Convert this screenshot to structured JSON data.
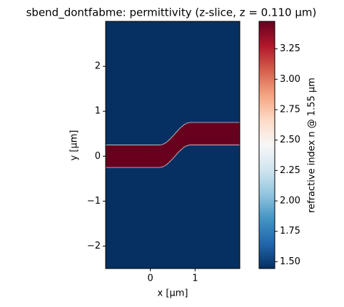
{
  "chart_data": {
    "type": "heatmap",
    "title": "sbend_dontfabme: permittivity (z-slice, z = 0.110 µm)",
    "xlabel": "x [µm]",
    "ylabel": "y [µm]",
    "xlim": [
      -1,
      2
    ],
    "ylim": [
      -2.5,
      3
    ],
    "xticks": [
      0,
      1
    ],
    "yticks": [
      {
        "value": -2,
        "label": "−2"
      },
      {
        "value": -1,
        "label": "−1"
      },
      0,
      1,
      2
    ],
    "cladding_index": 1.444,
    "waveguide": {
      "index": 3.476,
      "width": 0.5,
      "bend_start": 0.2,
      "bend_end": 0.9,
      "y_start": 0,
      "y_end": 0.5
    },
    "colorbar": {
      "label": "refractive index n @ 1.55 µm",
      "colormap": "RdBu_r",
      "clim": [
        1.444,
        3.476
      ],
      "ticks": [
        {
          "value": 1.5,
          "label": "1.50"
        },
        {
          "value": 1.75,
          "label": "1.75"
        },
        {
          "value": 2.0,
          "label": "2.00"
        },
        {
          "value": 2.25,
          "label": "2.25"
        },
        {
          "value": 2.5,
          "label": "2.50"
        },
        {
          "value": 2.75,
          "label": "2.75"
        },
        {
          "value": 3.0,
          "label": "3.00"
        },
        {
          "value": 3.25,
          "label": "3.25"
        }
      ]
    }
  }
}
